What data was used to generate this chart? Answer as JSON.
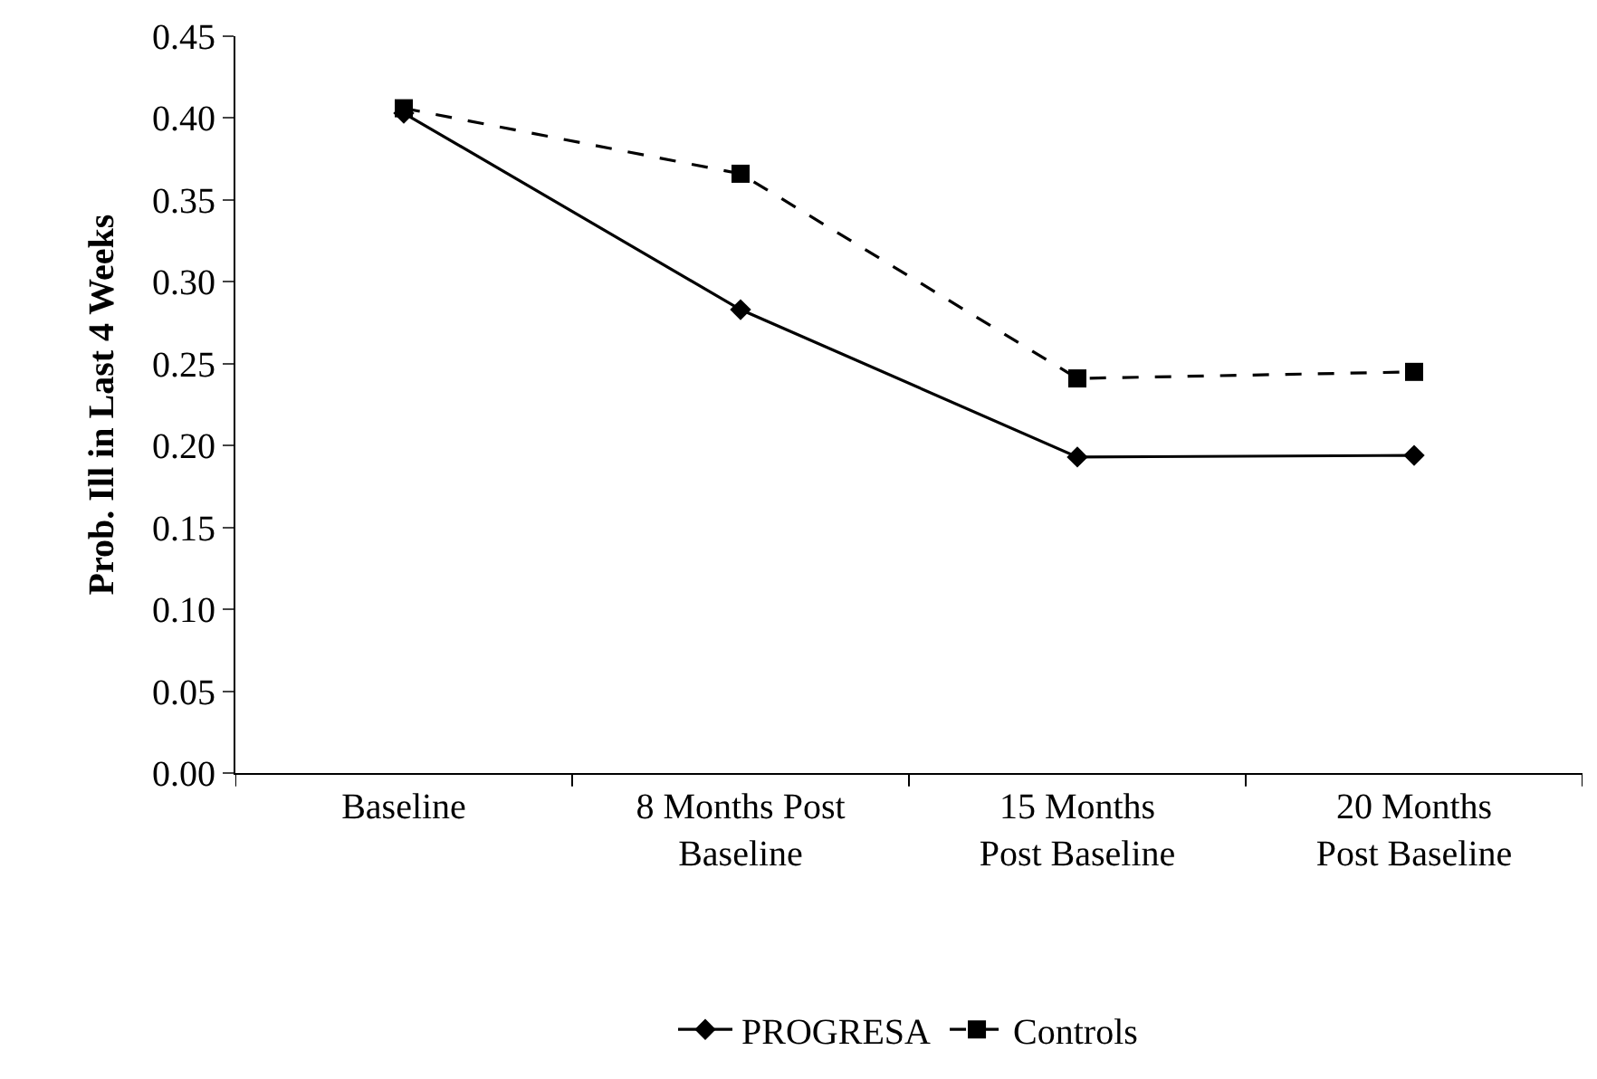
{
  "chart_data": {
    "type": "line",
    "ylabel": "Prob. Ill in Last 4 Weeks",
    "categories": [
      "Baseline",
      "8 Months Post\nBaseline",
      "15 Months\nPost Baseline",
      "20 Months\nPost Baseline"
    ],
    "series": [
      {
        "name": "PROGRESA",
        "color": "#000000",
        "values": [
          0.403,
          0.283,
          0.193,
          0.194
        ],
        "line_style": "solid",
        "marker": "diamond"
      },
      {
        "name": "Controls",
        "color": "#000000",
        "values": [
          0.406,
          0.366,
          0.241,
          0.245
        ],
        "line_style": "dashed",
        "marker": "square"
      }
    ],
    "ylim": [
      0,
      0.45
    ],
    "yticks": [
      {
        "value": 0,
        "label": "0.00"
      },
      {
        "value": 0.05,
        "label": "0.05"
      },
      {
        "value": 0.1,
        "label": "0.10"
      },
      {
        "value": 0.15,
        "label": "0.15"
      },
      {
        "value": 0.2,
        "label": "0.20"
      },
      {
        "value": 0.25,
        "label": "0.25"
      },
      {
        "value": 0.3,
        "label": "0.30"
      },
      {
        "value": 0.35,
        "label": "0.35"
      },
      {
        "value": 0.4,
        "label": "0.40"
      },
      {
        "value": 0.45,
        "label": "0.45"
      }
    ],
    "legend": "bottom"
  }
}
